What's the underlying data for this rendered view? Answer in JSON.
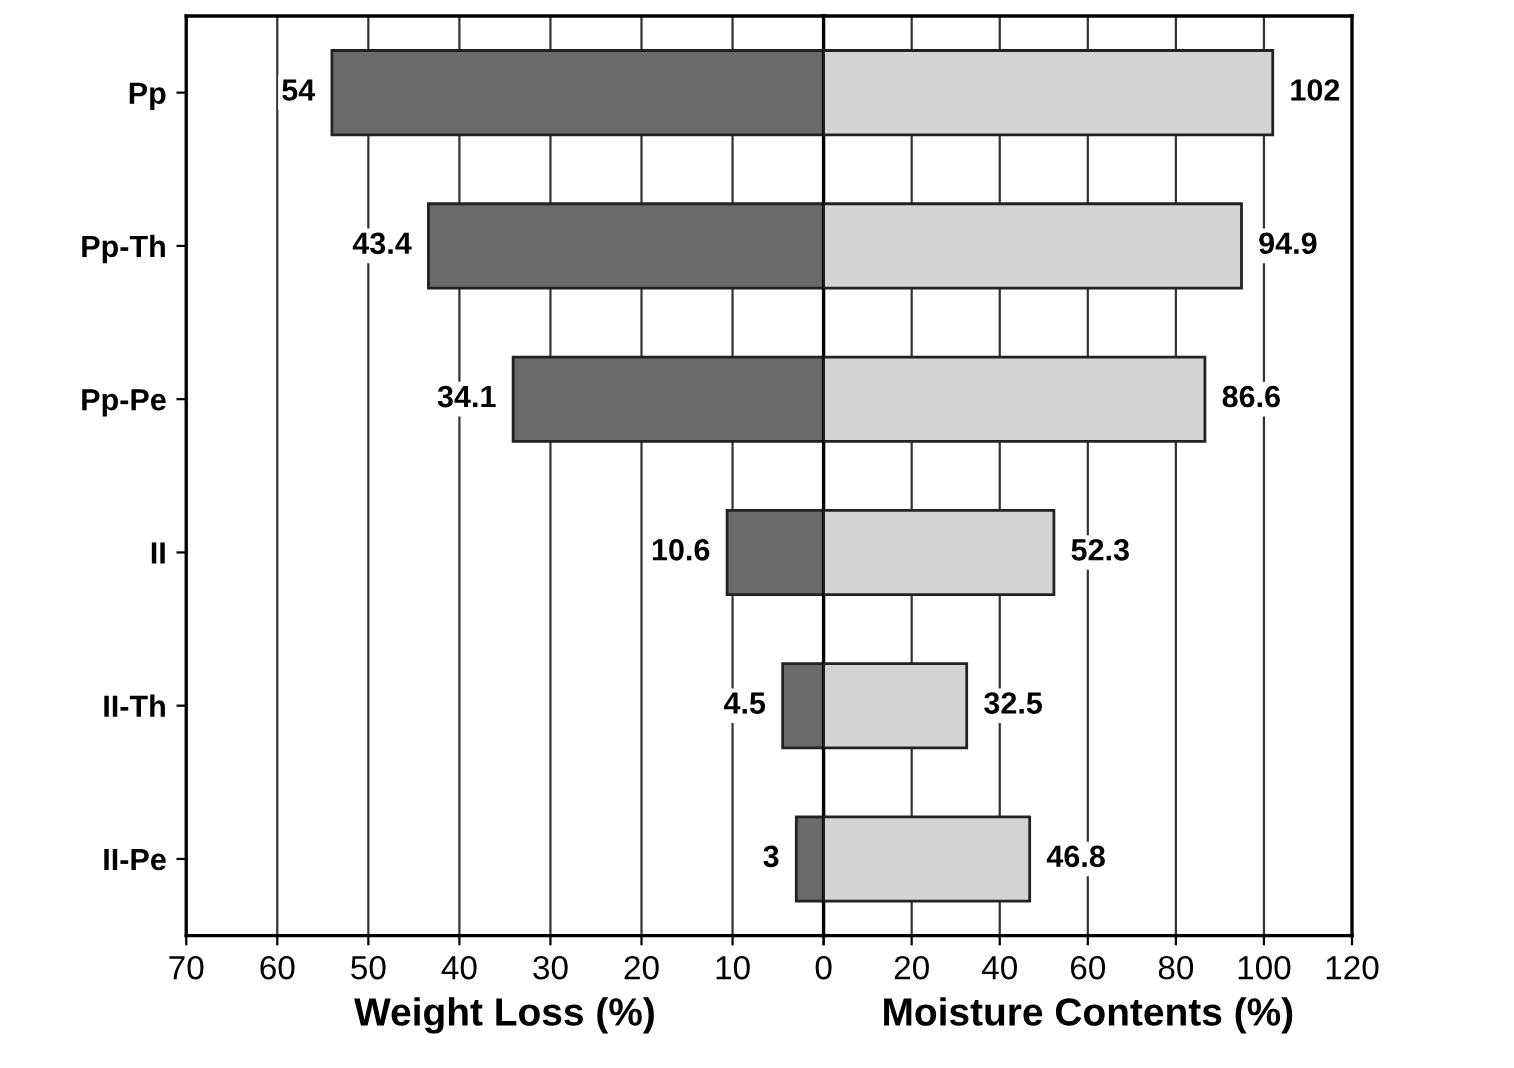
{
  "chart_data": [
    {
      "type": "bar",
      "orientation": "horizontal",
      "categories": [
        "Pp",
        "Pp-Th",
        "Pp-Pe",
        "II",
        "II-Th",
        "II-Pe"
      ],
      "values": [
        54,
        43.4,
        34.1,
        10.6,
        4.5,
        3
      ],
      "color": "#6a6a6a",
      "xlabel": "Weight Loss (%)",
      "xlim": [
        70,
        0
      ],
      "xticks": [
        70,
        60,
        50,
        40,
        30,
        20,
        10,
        {
          "value": 0,
          "label": null
        }
      ],
      "grid": "x",
      "data_labels": true
    },
    {
      "type": "bar",
      "orientation": "horizontal",
      "categories": [
        null,
        null,
        null,
        null,
        null,
        null
      ],
      "values": [
        102,
        94.9,
        86.6,
        52.3,
        32.5,
        46.8
      ],
      "color": "#d4d4d4",
      "xlabel": "Moisture Contents (%)",
      "xlim": [
        0,
        120
      ],
      "xticks": [
        0,
        20,
        40,
        60,
        80,
        100,
        120
      ],
      "grid": "x",
      "data_labels": true,
      "tick_labels": "x"
    }
  ]
}
